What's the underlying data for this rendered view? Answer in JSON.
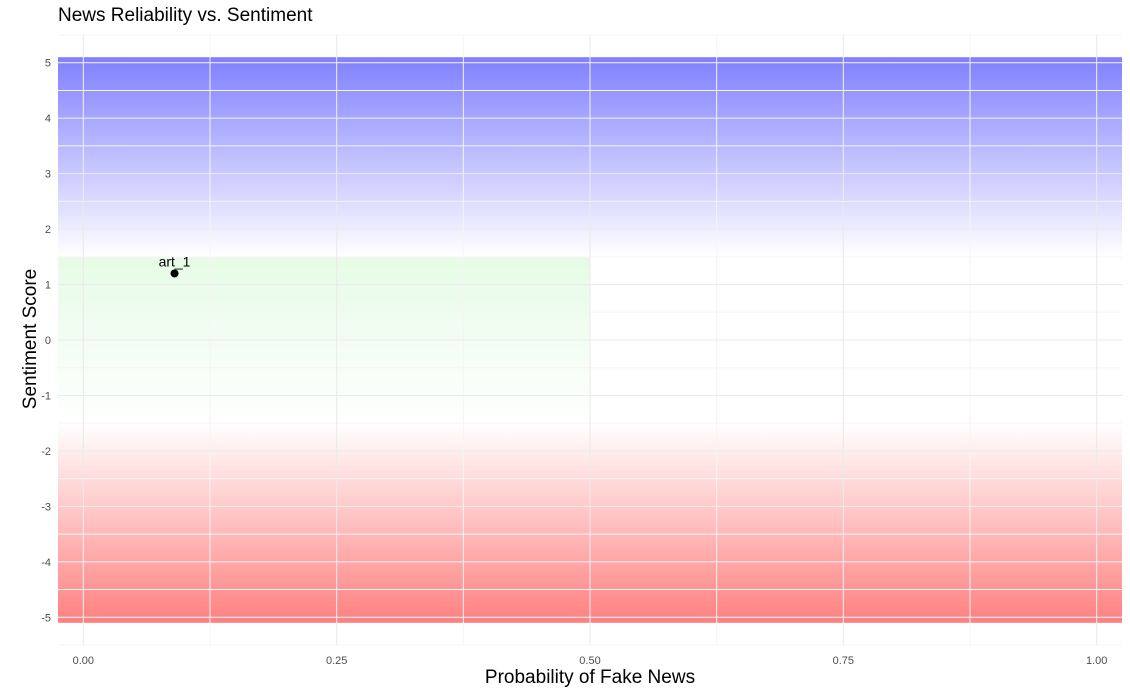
{
  "chart_data": {
    "type": "scatter",
    "title": "News Reliability vs. Sentiment",
    "xlabel": "Probability of Fake News",
    "ylabel": "Sentiment Score",
    "xlim": [
      -0.025,
      1.025
    ],
    "ylim": [
      -5.5,
      5.5
    ],
    "x_ticks": [
      0,
      0.25,
      0.5,
      0.75,
      1
    ],
    "x_tick_labels": [
      "0.00",
      "0.25",
      "0.50",
      "0.75",
      "1.00"
    ],
    "y_ticks": [
      -5,
      -4,
      -3,
      -2,
      -1,
      0,
      1,
      2,
      3,
      4,
      5
    ],
    "y_tick_labels": [
      "-5",
      "-4",
      "-3",
      "-2",
      "-1",
      "0",
      "1",
      "2",
      "3",
      "4",
      "5"
    ],
    "grid": true,
    "points": [
      {
        "label": "art_1",
        "x": 0.09,
        "y": 1.2
      }
    ],
    "background_bands": [
      {
        "name": "positive",
        "x": [
          -0.05,
          1.05
        ],
        "y": [
          1.5,
          5.1
        ],
        "color": "#0000ff",
        "max_opacity": 0.5,
        "gradient": "stronger toward top"
      },
      {
        "name": "reliable-neutral",
        "x": [
          -0.05,
          0.5
        ],
        "y": [
          -1.5,
          1.5
        ],
        "color": "#00dd00",
        "max_opacity": 0.1,
        "gradient": "stronger toward top"
      },
      {
        "name": "negative",
        "x": [
          -0.05,
          1.05
        ],
        "y": [
          -5.1,
          -1.5
        ],
        "color": "#ff0000",
        "max_opacity": 0.5,
        "gradient": "stronger toward bottom"
      }
    ],
    "colors": {
      "grid_major": "#ebebeb",
      "grid_minor": "#f5f5f5",
      "point": "#000000"
    }
  }
}
